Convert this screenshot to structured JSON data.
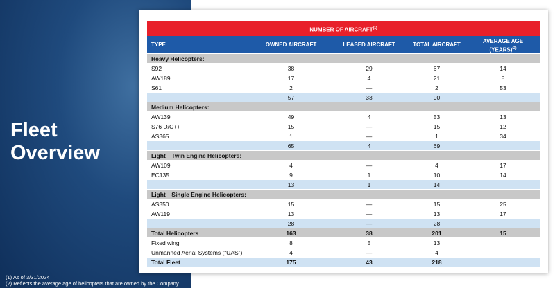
{
  "title": [
    "Fleet",
    "Overview"
  ],
  "table": {
    "banner": {
      "text": "NUMBER OF AIRCRAFT",
      "note": "(1)"
    },
    "columns": [
      "TYPE",
      "OWNED AIRCRAFT",
      "LEASED AIRCRAFT",
      "TOTAL  AIRCRAFT"
    ],
    "age_column": {
      "lines": [
        "AVERAGE AGE",
        "(YEARS)"
      ],
      "note": "(2)"
    },
    "groups": [
      {
        "label": "Heavy Helicopters:",
        "rows": [
          [
            "S92",
            38,
            29,
            67,
            14
          ],
          [
            "AW189",
            17,
            4,
            21,
            8
          ],
          [
            "S61",
            2,
            "—",
            2,
            53
          ]
        ],
        "subtotal": [
          57,
          33,
          90
        ]
      },
      {
        "label": "Medium Helicopters:",
        "rows": [
          [
            "AW139",
            49,
            4,
            53,
            13
          ],
          [
            "S76 D/C++",
            15,
            "—",
            15,
            12
          ],
          [
            "AS365",
            1,
            "—",
            1,
            34
          ]
        ],
        "subtotal": [
          65,
          4,
          69
        ]
      },
      {
        "label": "Light—Twin Engine Helicopters:",
        "rows": [
          [
            "AW109",
            4,
            "—",
            4,
            17
          ],
          [
            "EC135",
            9,
            1,
            10,
            14
          ]
        ],
        "subtotal": [
          13,
          1,
          14
        ]
      },
      {
        "label": "Light—Single Engine Helicopters:",
        "rows": [
          [
            "AS350",
            15,
            "—",
            15,
            25
          ],
          [
            "AW119",
            13,
            "—",
            13,
            17
          ]
        ],
        "subtotal": [
          28,
          "—",
          28
        ]
      }
    ],
    "summary_rows": [
      [
        "Total Helicopters",
        163,
        38,
        201,
        15
      ],
      [
        "Fixed wing",
        8,
        5,
        13
      ],
      [
        "Unmanned Aerial Systems (“UAS”)",
        4,
        "—",
        4
      ],
      [
        "Total Fleet",
        175,
        43,
        218
      ]
    ]
  },
  "footnotes": [
    "(1) As of 3/31/2024",
    "(2) Reflects the average age of helicopters that are owned by the Company."
  ]
}
